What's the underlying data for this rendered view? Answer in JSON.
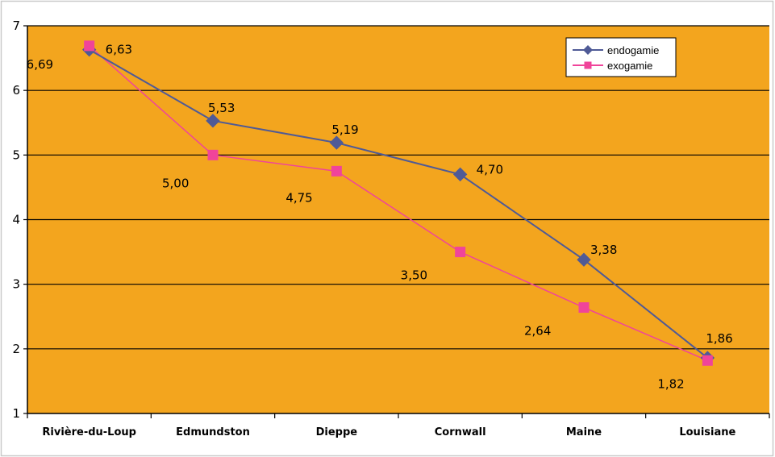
{
  "colors": {
    "plot_background": "#F3A51E",
    "gridline": "#000000",
    "endogamie": "#4F5A96",
    "exogamie": "#F0449A"
  },
  "chart_data": {
    "type": "line",
    "categories": [
      "Rivière-du-Loup",
      "Edmundston",
      "Dieppe",
      "Cornwall",
      "Maine",
      "Louisiane"
    ],
    "ylim": [
      1,
      7
    ],
    "yticks": [
      1,
      2,
      3,
      4,
      5,
      6,
      7
    ],
    "grid": true,
    "legend_position": "top-right",
    "series": [
      {
        "name": "endogamie",
        "marker": "diamond",
        "values": [
          6.63,
          5.53,
          5.19,
          4.7,
          3.38,
          1.86
        ],
        "labels": [
          "6,63",
          "5,53",
          "5,19",
          "4,70",
          "3,38",
          "1,86"
        ]
      },
      {
        "name": "exogamie",
        "marker": "square",
        "values": [
          6.69,
          5.0,
          4.75,
          3.5,
          2.64,
          1.82
        ],
        "labels": [
          "6,69",
          "5,00",
          "4,75",
          "3,50",
          "2,64",
          "1,82"
        ]
      }
    ]
  }
}
